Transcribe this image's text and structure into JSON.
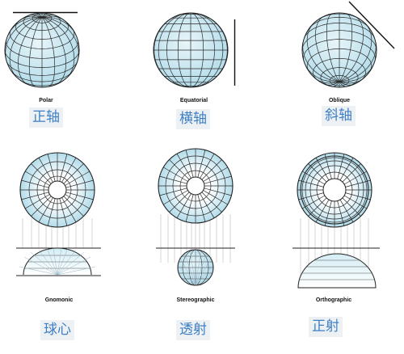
{
  "panels": [
    {
      "label_en": "Polar",
      "label_cn": "正轴"
    },
    {
      "label_en": "Equatorial",
      "label_cn": "横轴"
    },
    {
      "label_en": "Oblique",
      "label_cn": "斜轴"
    },
    {
      "label_en": "Gnomonic",
      "label_cn": "球心"
    },
    {
      "label_en": "Stereographic",
      "label_cn": "透射"
    },
    {
      "label_en": "Orthographic",
      "label_cn": "正射"
    }
  ],
  "colors": {
    "globe_fill": "#bfe3ee",
    "globe_light": "#e8f5f9",
    "line": "#222222",
    "grid": "#2a2a2a",
    "ray": "#b9b9b9",
    "chinese_text": "#3d7fc4"
  }
}
